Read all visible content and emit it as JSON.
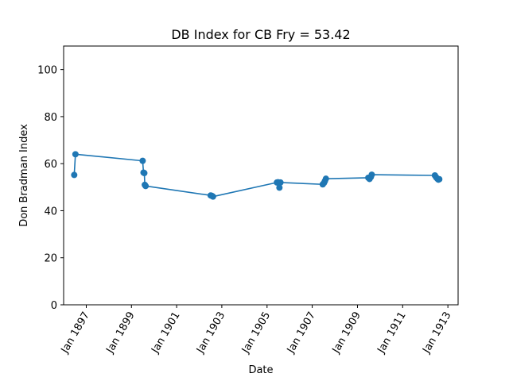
{
  "chart_data": {
    "type": "line",
    "title": "DB Index for CB Fry = 53.42",
    "xlabel": "Date",
    "ylabel": "Don Bradman Index",
    "xlim": [
      "1896-01-01",
      "1913-06-15"
    ],
    "ylim": [
      0,
      110
    ],
    "x_ticks": [
      "1897-01-01",
      "1899-01-01",
      "1901-01-01",
      "1903-01-01",
      "1905-01-01",
      "1907-01-01",
      "1909-01-01",
      "1911-01-01",
      "1913-01-01"
    ],
    "x_tick_labels": [
      "Jan 1897",
      "Jan 1899",
      "Jan 1901",
      "Jan 1903",
      "Jan 1905",
      "Jan 1907",
      "Jan 1909",
      "Jan 1911",
      "Jan 1913"
    ],
    "y_ticks": [
      0,
      20,
      40,
      60,
      80,
      100
    ],
    "y_tick_labels": [
      "0",
      "20",
      "40",
      "60",
      "80",
      "100"
    ],
    "grid": false,
    "color": "#1f77b4",
    "series": [
      {
        "x": [
          "1896-06-20",
          "1896-07-10",
          "1899-07-01",
          "1899-07-15",
          "1899-07-28",
          "1899-08-05",
          "1899-08-18",
          "1902-07-05",
          "1902-07-25",
          "1902-08-12",
          "1905-06-10",
          "1905-06-28",
          "1905-07-20",
          "1905-08-05",
          "1907-06-20",
          "1907-07-10",
          "1907-07-25",
          "1907-08-10",
          "1909-06-25",
          "1909-07-15",
          "1909-08-05",
          "1909-08-20",
          "1912-06-05",
          "1912-06-25",
          "1912-07-15",
          "1912-08-01",
          "1912-08-15"
        ],
        "y": [
          55.2,
          64.0,
          61.2,
          56.2,
          56.0,
          51.0,
          50.5,
          46.5,
          46.3,
          46.0,
          52.0,
          52.1,
          49.8,
          52.0,
          51.2,
          51.8,
          52.6,
          53.6,
          54.0,
          53.5,
          54.3,
          55.3,
          55.0,
          54.2,
          53.6,
          53.2,
          53.4
        ]
      }
    ]
  }
}
